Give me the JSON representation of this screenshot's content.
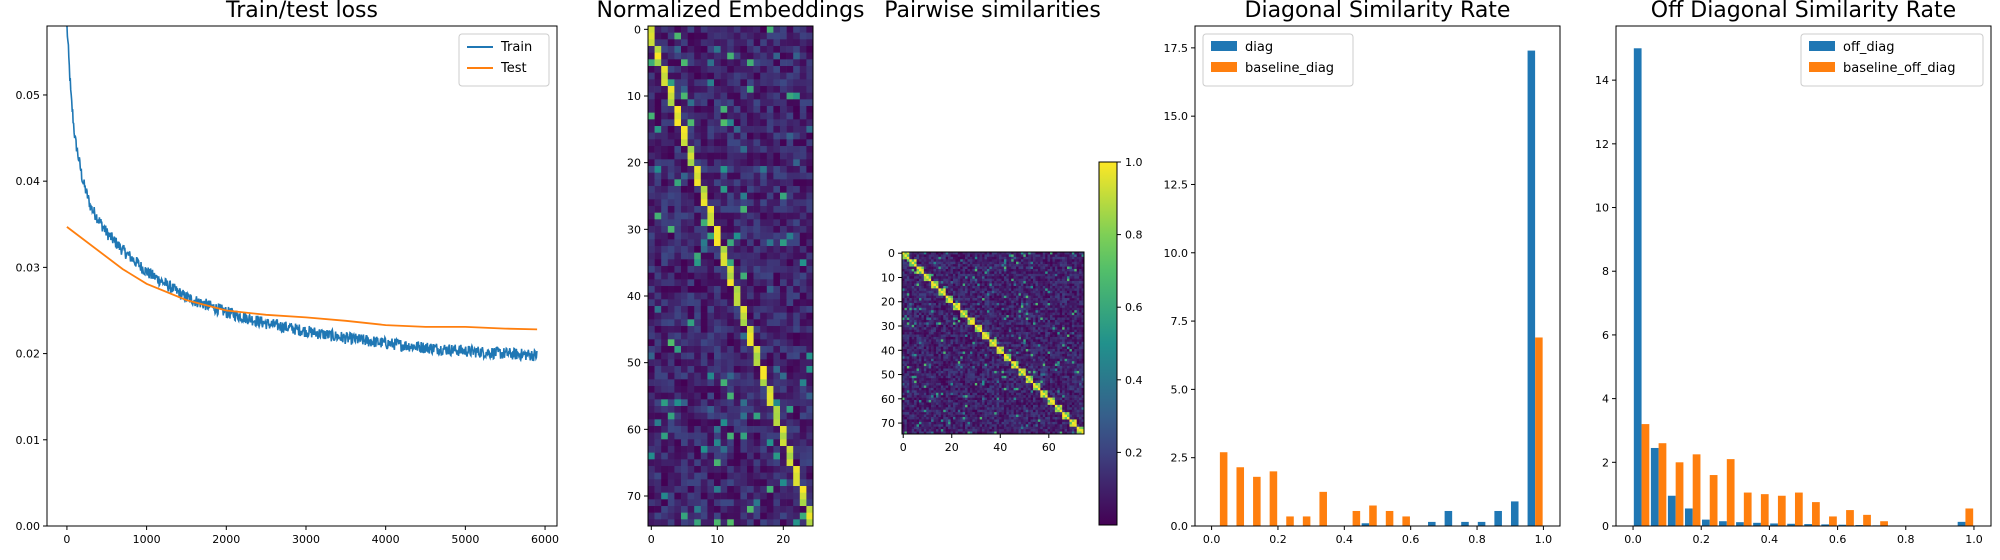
{
  "chart_data": [
    {
      "type": "line",
      "title": "Train/test loss",
      "xlabel": "",
      "ylabel": "",
      "xlim": [
        -250,
        6150
      ],
      "ylim": [
        0.0,
        0.058
      ],
      "x_ticks": [
        0,
        1000,
        2000,
        3000,
        4000,
        5000,
        6000
      ],
      "y_ticks": [
        0.0,
        0.01,
        0.02,
        0.03,
        0.04,
        0.05
      ],
      "legend_position": "top-right",
      "series": [
        {
          "name": "Train",
          "color": "#1f77b4",
          "x": [
            0,
            50,
            100,
            200,
            300,
            500,
            700,
            1000,
            1500,
            2000,
            2500,
            3000,
            3500,
            4000,
            4500,
            5000,
            5500,
            5900
          ],
          "y": [
            0.058,
            0.05,
            0.045,
            0.04,
            0.037,
            0.034,
            0.032,
            0.0295,
            0.0265,
            0.0248,
            0.0235,
            0.0226,
            0.0218,
            0.0212,
            0.0207,
            0.0203,
            0.02,
            0.0198
          ]
        },
        {
          "name": "Test",
          "color": "#ff7f0e",
          "x": [
            0,
            700,
            1000,
            1500,
            2000,
            2500,
            3000,
            3500,
            4000,
            4500,
            5000,
            5500,
            5900
          ],
          "y": [
            0.0347,
            0.0298,
            0.0281,
            0.0262,
            0.025,
            0.0245,
            0.0242,
            0.0238,
            0.0233,
            0.0231,
            0.0231,
            0.0229,
            0.0228
          ]
        }
      ]
    },
    {
      "type": "heatmap",
      "title": "Normalized Embeddings",
      "rows": 75,
      "cols": 25,
      "colormap": "viridis",
      "x_ticks": [
        0,
        10,
        20
      ],
      "y_ticks": [
        0,
        10,
        20,
        30,
        40,
        50,
        60,
        70
      ]
    },
    {
      "type": "heatmap",
      "title": "Pairwise similarities",
      "rows": 75,
      "cols": 75,
      "colormap": "viridis",
      "x_ticks": [
        0,
        20,
        40,
        60
      ],
      "y_ticks": [
        0,
        10,
        20,
        30,
        40,
        50,
        60,
        70
      ],
      "colorbar_ticks": [
        0.2,
        0.4,
        0.6,
        0.8,
        1.0
      ]
    },
    {
      "type": "bar",
      "title": "Diagonal Similarity Rate",
      "xlim": [
        -0.05,
        1.05
      ],
      "ylim": [
        0,
        18.3
      ],
      "x_ticks": [
        0.0,
        0.2,
        0.4,
        0.6,
        0.8,
        1.0
      ],
      "y_ticks": [
        0.0,
        2.5,
        5.0,
        7.5,
        10.0,
        12.5,
        15.0,
        17.5
      ],
      "legend_position": "top-left",
      "bin_centers": [
        0.025,
        0.075,
        0.125,
        0.175,
        0.225,
        0.275,
        0.325,
        0.375,
        0.425,
        0.475,
        0.525,
        0.575,
        0.625,
        0.675,
        0.725,
        0.775,
        0.825,
        0.875,
        0.925,
        0.975
      ],
      "series": [
        {
          "name": "diag",
          "color": "#1f77b4",
          "values": [
            0,
            0,
            0,
            0,
            0,
            0,
            0,
            0,
            0,
            0.1,
            0,
            0,
            0,
            0.15,
            0.55,
            0.15,
            0.15,
            0.55,
            0.9,
            17.4
          ]
        },
        {
          "name": "baseline_diag",
          "color": "#ff7f0e",
          "values": [
            2.7,
            2.15,
            1.8,
            2.0,
            0.35,
            0.35,
            1.25,
            0,
            0.55,
            0.75,
            0.55,
            0.35,
            0,
            0,
            0,
            0,
            0,
            0,
            0,
            6.9
          ]
        }
      ]
    },
    {
      "type": "bar",
      "title": "Off Diagonal Similarity Rate",
      "xlim": [
        -0.05,
        1.05
      ],
      "ylim": [
        0,
        15.7
      ],
      "x_ticks": [
        0.0,
        0.2,
        0.4,
        0.6,
        0.8,
        1.0
      ],
      "y_ticks": [
        0,
        2,
        4,
        6,
        8,
        10,
        12,
        14
      ],
      "legend_position": "top-right",
      "bin_centers": [
        0.025,
        0.075,
        0.125,
        0.175,
        0.225,
        0.275,
        0.325,
        0.375,
        0.425,
        0.475,
        0.525,
        0.575,
        0.625,
        0.675,
        0.725,
        0.775,
        0.825,
        0.875,
        0.925,
        0.975
      ],
      "series": [
        {
          "name": "off_diag",
          "color": "#1f77b4",
          "values": [
            15.0,
            2.45,
            0.95,
            0.55,
            0.2,
            0.15,
            0.12,
            0.1,
            0.08,
            0.07,
            0.06,
            0.05,
            0.04,
            0.03,
            0.02,
            0.01,
            0.01,
            0.01,
            0,
            0.13
          ]
        },
        {
          "name": "baseline_off_diag",
          "color": "#ff7f0e",
          "values": [
            3.2,
            2.6,
            2.0,
            2.25,
            1.6,
            2.1,
            1.05,
            1.0,
            0.95,
            1.05,
            0.75,
            0.3,
            0.5,
            0.35,
            0.15,
            0,
            0,
            0,
            0,
            0.55
          ]
        }
      ]
    }
  ]
}
